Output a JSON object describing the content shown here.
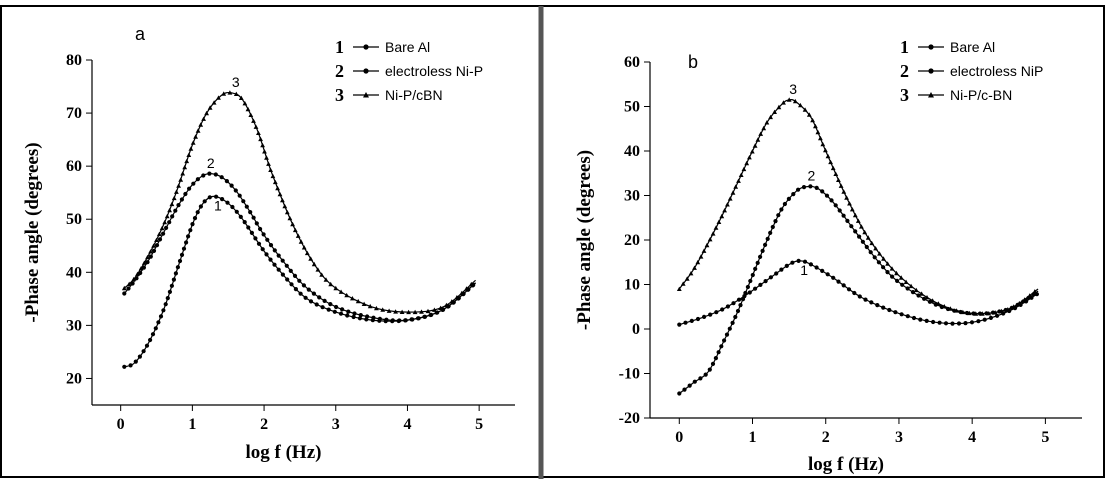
{
  "chart_data": [
    {
      "type": "line",
      "panel_letter": "a",
      "xlabel": "log f (Hz)",
      "ylabel": "-Phase angle (degrees)",
      "xlim": [
        -0.4,
        5.5
      ],
      "ylim": [
        15,
        80
      ],
      "xticks": [
        0,
        1,
        2,
        3,
        4,
        5
      ],
      "yticks": [
        20,
        30,
        40,
        50,
        60,
        70,
        80
      ],
      "legend_position": "top-right",
      "series": [
        {
          "number": "1",
          "name": "Bare Al",
          "curve_label": "1",
          "x": [
            0.05,
            0.2,
            0.4,
            0.6,
            0.8,
            1.0,
            1.15,
            1.3,
            1.5,
            1.7,
            2.0,
            2.3,
            2.6,
            3.0,
            3.5,
            4.0,
            4.5,
            4.95
          ],
          "y": [
            22.2,
            23.0,
            27.0,
            33.0,
            41.0,
            49.0,
            53.0,
            54.3,
            53.0,
            50.0,
            44.0,
            39.0,
            35.0,
            32.5,
            31.0,
            31.0,
            33.0,
            38.0
          ]
        },
        {
          "number": "2",
          "name": "electroless Ni-P",
          "curve_label": "2",
          "x": [
            0.05,
            0.2,
            0.4,
            0.6,
            0.8,
            1.0,
            1.2,
            1.4,
            1.6,
            1.8,
            2.0,
            2.3,
            2.6,
            3.0,
            3.5,
            4.0,
            4.5,
            4.95
          ],
          "y": [
            36.0,
            38.5,
            42.5,
            47.5,
            52.5,
            56.5,
            58.5,
            58.0,
            55.5,
            51.5,
            47.0,
            41.5,
            37.0,
            33.5,
            31.5,
            31.0,
            33.0,
            38.0
          ]
        },
        {
          "number": "3",
          "name": "Ni-P/cBN",
          "curve_label": "3",
          "x": [
            0.05,
            0.2,
            0.4,
            0.6,
            0.8,
            1.0,
            1.2,
            1.4,
            1.55,
            1.7,
            1.9,
            2.1,
            2.4,
            2.7,
            3.0,
            3.5,
            4.0,
            4.5,
            4.95
          ],
          "y": [
            37.0,
            39.0,
            43.5,
            49.0,
            56.0,
            64.0,
            70.0,
            73.3,
            73.8,
            72.5,
            67.0,
            59.0,
            49.0,
            41.5,
            37.0,
            33.5,
            32.5,
            33.5,
            38.5
          ]
        }
      ]
    },
    {
      "type": "line",
      "panel_letter": "b",
      "xlabel": "log f (Hz)",
      "ylabel": "-Phase angle (degrees)",
      "xlim": [
        -0.4,
        5.5
      ],
      "ylim": [
        -20,
        60
      ],
      "xticks": [
        0,
        1,
        2,
        3,
        4,
        5
      ],
      "yticks": [
        -20,
        -10,
        0,
        10,
        20,
        30,
        40,
        50,
        60
      ],
      "legend_position": "top-right",
      "series": [
        {
          "number": "1",
          "name": "Bare Al",
          "curve_label": "1",
          "x": [
            0.0,
            0.3,
            0.6,
            0.9,
            1.2,
            1.5,
            1.65,
            1.8,
            2.1,
            2.5,
            3.0,
            3.5,
            4.0,
            4.5,
            4.9
          ],
          "y": [
            1.0,
            2.5,
            4.5,
            7.5,
            11.0,
            14.5,
            15.3,
            14.5,
            11.5,
            7.0,
            3.5,
            1.5,
            1.5,
            4.0,
            8.0
          ]
        },
        {
          "number": "2",
          "name": "electroless NiP",
          "curve_label": "2",
          "x": [
            0.0,
            0.2,
            0.4,
            0.6,
            0.8,
            1.0,
            1.2,
            1.4,
            1.6,
            1.75,
            1.9,
            2.1,
            2.4,
            2.7,
            3.0,
            3.5,
            4.0,
            4.5,
            4.9
          ],
          "y": [
            -14.5,
            -12.0,
            -9.5,
            -3.0,
            4.0,
            12.0,
            20.0,
            27.0,
            31.0,
            32.0,
            31.5,
            28.5,
            22.0,
            15.5,
            10.5,
            5.5,
            3.5,
            4.5,
            8.5
          ]
        },
        {
          "number": "3",
          "name": "Ni-P/c-BN",
          "curve_label": "3",
          "x": [
            0.0,
            0.2,
            0.4,
            0.6,
            0.8,
            1.0,
            1.2,
            1.4,
            1.5,
            1.6,
            1.8,
            2.0,
            2.3,
            2.6,
            3.0,
            3.5,
            4.0,
            4.5,
            4.9
          ],
          "y": [
            9.0,
            13.5,
            19.5,
            26.0,
            33.0,
            40.0,
            46.5,
            50.5,
            51.5,
            51.0,
            47.5,
            40.0,
            29.0,
            20.0,
            12.0,
            6.0,
            3.5,
            4.5,
            9.0
          ]
        }
      ]
    }
  ]
}
